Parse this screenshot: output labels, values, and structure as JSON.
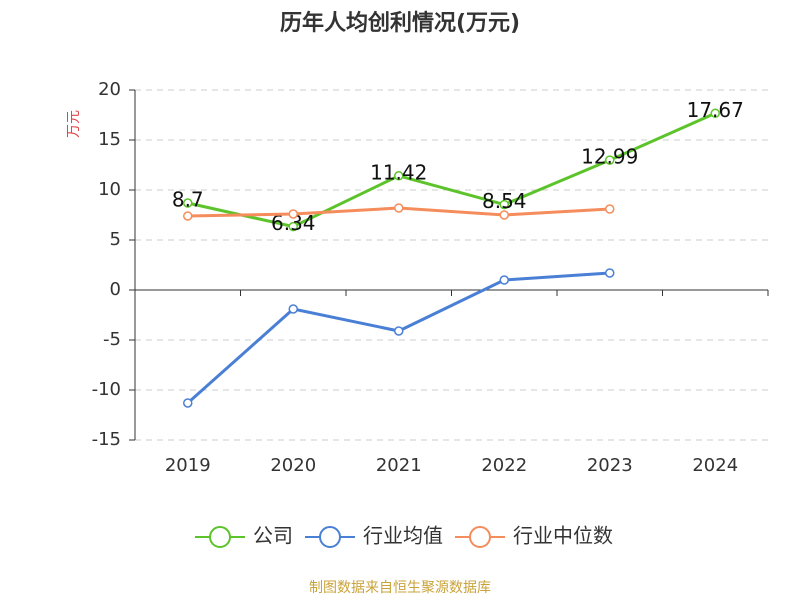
{
  "chart_data": {
    "type": "line",
    "title": "历年人均创利情况(万元)",
    "y_label": "万元",
    "categories": [
      "2019",
      "2020",
      "2021",
      "2022",
      "2023",
      "2024"
    ],
    "series": [
      {
        "name": "公司",
        "color": "#5cc42a",
        "values": [
          8.7,
          6.34,
          11.42,
          8.54,
          12.99,
          17.67
        ],
        "show_labels": true
      },
      {
        "name": "行业均值",
        "color": "#4a7fd6",
        "values": [
          -11.3,
          -1.9,
          -4.1,
          1.0,
          1.7,
          null
        ]
      },
      {
        "name": "行业中位数",
        "color": "#f58c5c",
        "values": [
          7.4,
          7.6,
          8.2,
          7.5,
          8.1,
          null
        ]
      }
    ],
    "ylim": [
      -15,
      20
    ],
    "yticks": [
      -15,
      -10,
      -5,
      0,
      5,
      10,
      15,
      20
    ],
    "grid": true,
    "legend": "bottom",
    "source": "制图数据来自恒生聚源数据库"
  }
}
